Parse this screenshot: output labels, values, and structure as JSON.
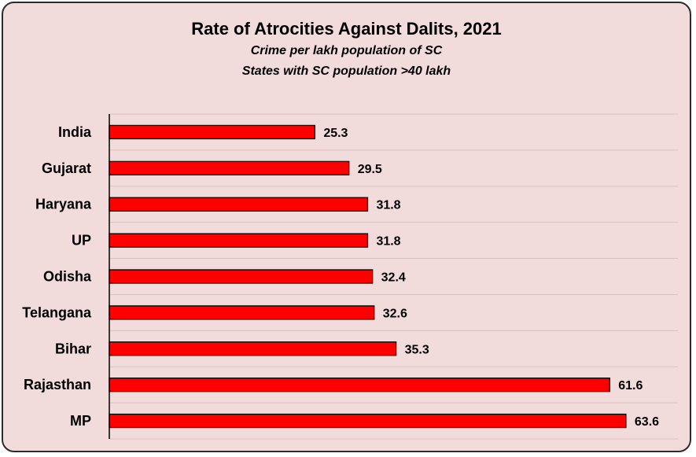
{
  "chart_data": {
    "type": "bar",
    "orientation": "horizontal",
    "title": "Rate of Atrocities Against Dalits, 2021",
    "subtitle_lines": [
      "Crime per lakh population of SC",
      "States with SC population >40 lakh"
    ],
    "categories": [
      "India",
      "Gujarat",
      "Haryana",
      "UP",
      "Odisha",
      "Telangana",
      "Bihar",
      "Rajasthan",
      "MP"
    ],
    "values": [
      25.3,
      29.5,
      31.8,
      31.8,
      32.4,
      32.6,
      35.3,
      61.6,
      63.6
    ],
    "data_labels": [
      "25.3",
      "29.5",
      "31.8",
      "31.8",
      "32.4",
      "32.6",
      "35.3",
      "61.6",
      "63.6"
    ],
    "xlim": [
      0,
      70
    ],
    "grid": true,
    "colors": {
      "bar": "#ff0000",
      "bar_border": "#000000",
      "background": "#f2dcdb",
      "grid": "#d9bfbe"
    }
  }
}
